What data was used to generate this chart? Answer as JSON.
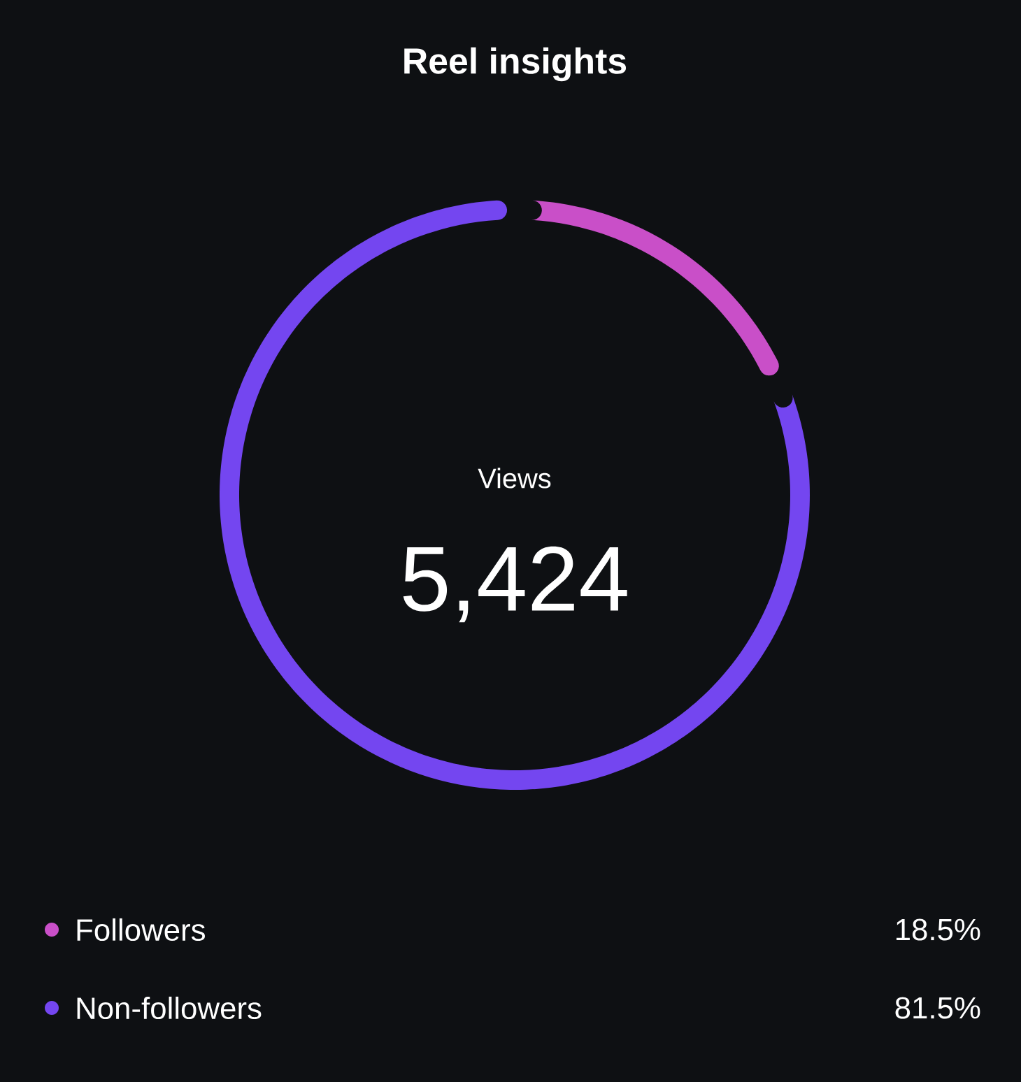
{
  "chart_data": {
    "type": "donut",
    "title": "Reel insights",
    "categories": [
      "Followers",
      "Non-followers"
    ],
    "values": [
      18.5,
      81.5
    ],
    "colors": [
      "#c94fc8",
      "#7446f0"
    ],
    "value_labels": [
      "18.5%",
      "81.5%"
    ],
    "annotations": [
      "Views",
      "5,424"
    ],
    "legend": "bottom"
  }
}
